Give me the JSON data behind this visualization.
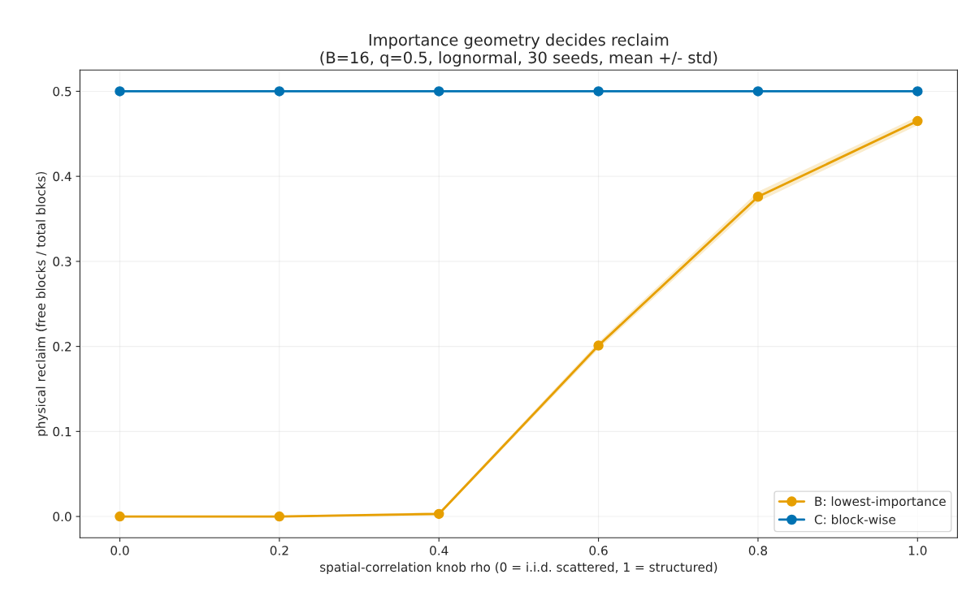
{
  "chart_data": {
    "type": "line",
    "title": "Importance geometry decides reclaim\n(B=16, q=0.5, lognormal, 30 seeds, mean +/- std)",
    "xlabel": "spatial-correlation knob rho (0 = i.i.d. scattered, 1 = structured)",
    "ylabel": "physical reclaim (free blocks / total blocks)",
    "x": [
      0.0,
      0.2,
      0.4,
      0.6,
      0.8,
      1.0
    ],
    "series": [
      {
        "name": "B: lowest-importance",
        "color": "#e69f00",
        "values": [
          0.0,
          0.0,
          0.003,
          0.201,
          0.376,
          0.465
        ],
        "lower": [
          0.0,
          0.0,
          0.001,
          0.197,
          0.37,
          0.46
        ],
        "upper": [
          0.0,
          0.001,
          0.005,
          0.205,
          0.382,
          0.47
        ]
      },
      {
        "name": "C: block-wise",
        "color": "#0072b2",
        "values": [
          0.5,
          0.5,
          0.5,
          0.5,
          0.5,
          0.5
        ]
      }
    ],
    "xlim": [
      -0.05,
      1.05
    ],
    "ylim": [
      -0.025,
      0.525
    ],
    "xticks": [
      {
        "value": 0.0,
        "label": "0.0"
      },
      0.2,
      0.4,
      0.6,
      0.8,
      {
        "value": 1.0,
        "label": "1.0"
      }
    ],
    "yticks": [
      {
        "value": 0.0,
        "label": "0.0"
      },
      0.1,
      0.2,
      0.3,
      0.4,
      0.5
    ],
    "grid": true,
    "legend": "bottom right",
    "marker": "circle",
    "line_style": "solid"
  }
}
